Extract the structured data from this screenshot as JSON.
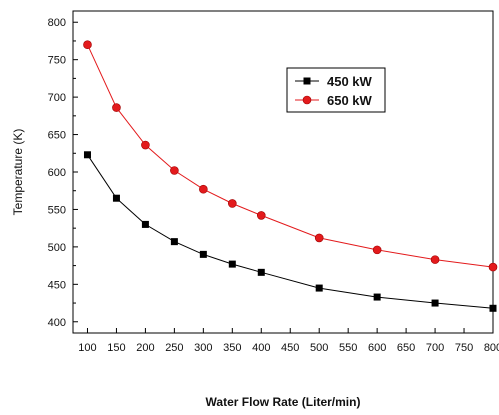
{
  "chart_data": {
    "type": "line",
    "title": "",
    "xlabel": "Water Flow Rate (Liter/min)",
    "ylabel": "Temperature (K)",
    "xlim": [
      75,
      800
    ],
    "ylim": [
      385,
      815
    ],
    "xticks": [
      100,
      150,
      200,
      250,
      300,
      350,
      400,
      450,
      500,
      550,
      600,
      650,
      700,
      750,
      800
    ],
    "yticks": [
      400,
      450,
      500,
      550,
      600,
      650,
      700,
      750,
      800
    ],
    "grid": false,
    "legend": "upper-right",
    "series": [
      {
        "name": "450 kW",
        "color": "#000000",
        "marker": "square",
        "x": [
          100,
          150,
          200,
          250,
          300,
          350,
          400,
          500,
          600,
          700,
          800
        ],
        "y": [
          623,
          565,
          530,
          507,
          490,
          477,
          466,
          445,
          433,
          425,
          418
        ]
      },
      {
        "name": "650 kW",
        "color": "#e31a1c",
        "marker": "circle",
        "x": [
          100,
          150,
          200,
          250,
          300,
          350,
          400,
          500,
          600,
          700,
          800
        ],
        "y": [
          770,
          686,
          636,
          602,
          577,
          558,
          542,
          512,
          496,
          483,
          473
        ]
      }
    ]
  }
}
